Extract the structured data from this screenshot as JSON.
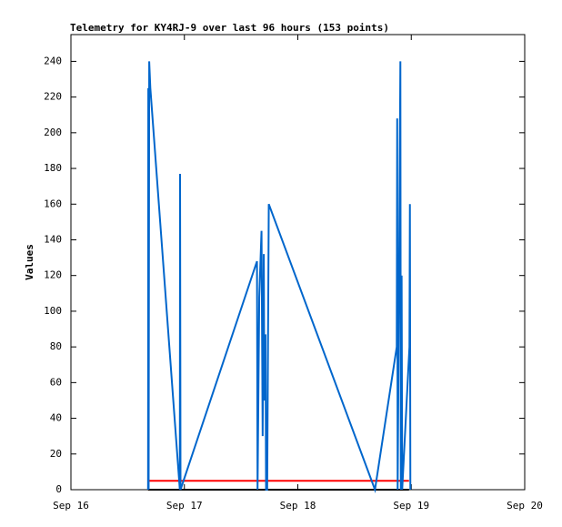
{
  "chart_data": {
    "type": "line",
    "title": "Telemetry for KY4RJ-9 over last 96 hours (153 points)",
    "y_label": "Values",
    "xlim": [
      0,
      4
    ],
    "xticks": [
      {
        "value": 0,
        "label": "Sep 16"
      },
      {
        "value": 1,
        "label": "Sep 17"
      },
      {
        "value": 2,
        "label": "Sep 18"
      },
      {
        "value": 3,
        "label": "Sep 19"
      },
      {
        "value": 4,
        "label": "Sep 20"
      }
    ],
    "ylim": [
      0,
      255
    ],
    "yticks": [
      0,
      20,
      40,
      60,
      80,
      100,
      120,
      140,
      160,
      180,
      200,
      220,
      240
    ],
    "series": [
      {
        "color": "#0066cc",
        "x": [
          0.68,
          0.682,
          0.685,
          0.69,
          0.7,
          0.96,
          0.962,
          0.966,
          1.64,
          1.645,
          1.66,
          1.68,
          1.69,
          1.7,
          1.705,
          1.715,
          1.72,
          1.73,
          1.744,
          2.68,
          2.872,
          2.876,
          2.88,
          2.895,
          2.904,
          2.908,
          2.915,
          2.92,
          2.984,
          2.988,
          2.992
        ],
        "values": [
          0,
          225,
          0,
          240,
          225,
          0,
          177,
          0,
          128,
          0,
          108,
          145,
          30,
          132,
          50,
          87,
          0,
          0,
          160,
          0,
          80,
          208,
          0,
          145,
          240,
          0,
          120,
          0,
          80,
          160,
          0
        ]
      },
      {
        "color": "#ff0000",
        "x": [
          0.68,
          2.98
        ],
        "values": [
          5,
          5
        ]
      },
      {
        "color": "#000000",
        "x": [
          0.68,
          2.98
        ],
        "values": [
          0,
          0
        ]
      }
    ]
  }
}
